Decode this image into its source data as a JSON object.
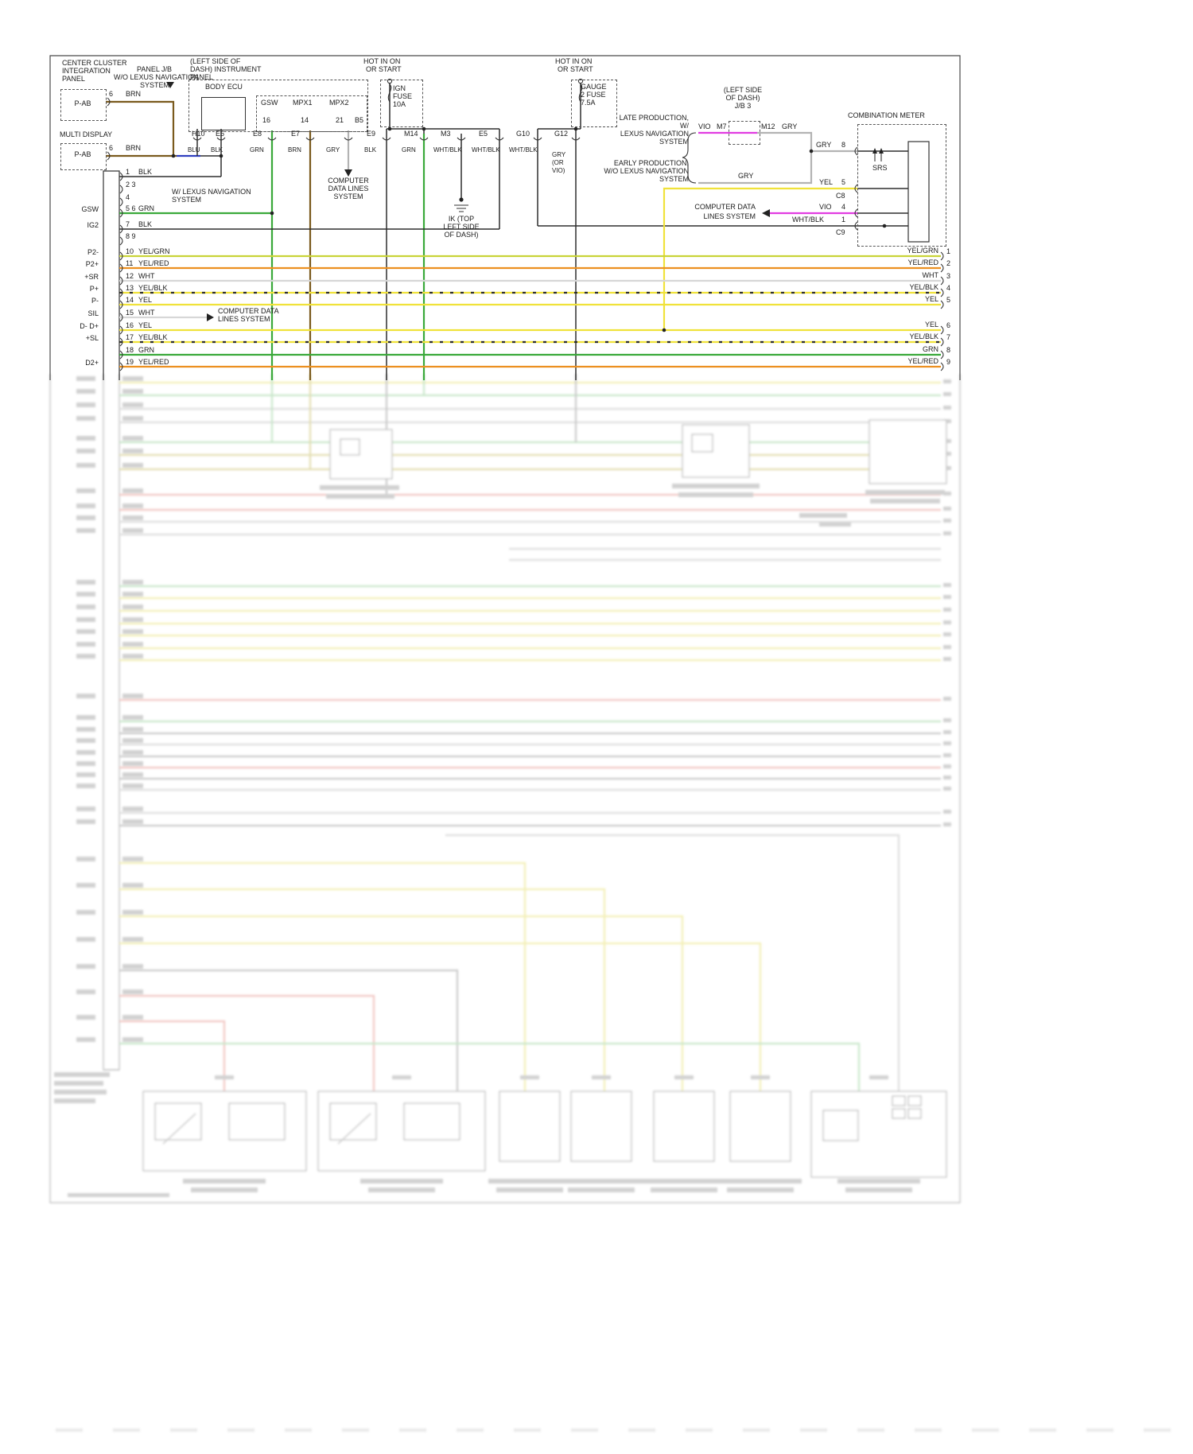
{
  "colors": {
    "blk": "#2e2e2e",
    "brn": "#7a5a1d",
    "blu": "#2f3fbf",
    "grn": "#3aa93a",
    "gry": "#b3b3b3",
    "yel": "#f0e23a",
    "yel_grn": "#c9d438",
    "yel_red": "#ec9020",
    "wht": "#d7d7d7",
    "vio": "#e13ce1",
    "frame": "#4a4a4a"
  },
  "labels": {
    "ccip1": "CENTER CLUSTER",
    "ccip2": "INTEGRATION",
    "ccip3": "PANEL",
    "panel_jb": "PANEL J/B",
    "wo_nav1": "W/O LEXUS NAVIGATION",
    "wo_nav2": "SYSTEM",
    "pab": "P-AB",
    "pin6": "6",
    "brn": "BRN",
    "multi_display": "MULTI DISPLAY",
    "w_nav1": "W/ LEXUS NAVIGATION",
    "w_nav2": "SYSTEM",
    "ip1": "(LEFT SIDE OF",
    "ip2": "DASH) INSTRUMENT",
    "ip3": "PANEL",
    "body_ecu": "BODY ECU",
    "gsw": "GSW",
    "mpx1": "MPX1",
    "mpx2": "MPX2",
    "p16": "16",
    "p14": "14",
    "p21": "21",
    "pb5": "B5",
    "hot1": "HOT IN ON",
    "hot2": "OR START",
    "ign1": "IGN",
    "ign2": "FUSE",
    "ign3": "10A",
    "gauge1": "GAUGE",
    "gauge2": "2 FUSE",
    "gauge3": "7.5A",
    "cdl1": "COMPUTER",
    "cdl2": "DATA LINES",
    "cdl3": "SYSTEM",
    "ik1": "IK (TOP",
    "ik2": "LEFT SIDE",
    "ik3": "OF DASH)",
    "cdl_l1": "COMPUTER DATA",
    "cdl_l2": "LINES SYSTEM",
    "late1": "LATE PRODUCTION,",
    "late2": "W/",
    "late3": "LEXUS NAVIGATION",
    "late4": "SYSTEM",
    "early1": "EARLY PRODUCTION,",
    "early2": "W/O LEXUS NAVIGATION",
    "early3": "SYSTEM",
    "jb3_1": "(LEFT SIDE",
    "jb3_2": "OF DASH)",
    "jb3_3": "J/B 3",
    "vio": "VIO",
    "m7": "M7",
    "m12": "M12",
    "gry": "GRY",
    "comb_meter": "COMBINATION METER",
    "srs": "SRS",
    "n8": "8",
    "n5": "5",
    "n4": "4",
    "n1": "1",
    "yel": "YEL",
    "wht_blk": "WHT/BLK",
    "c8": "C8",
    "c9": "C9"
  },
  "ecu_connectors": [
    "H10",
    "E6",
    "E8",
    "E7",
    "E9",
    "M14",
    "M3",
    "E5",
    "G10",
    "G12"
  ],
  "ecu_wire_colors": [
    "BLU",
    "BLK",
    "GRN",
    "BRN",
    "GRY",
    "BLK",
    "GRN",
    "WHT/BLK",
    "WHT/BLK",
    "WHT/BLK"
  ],
  "g12_color_lines": [
    "GRY",
    "(OR",
    "VIO)"
  ],
  "left_connector": {
    "rows": [
      {
        "pin": "1",
        "color": "BLK"
      },
      {
        "pin": "2 3",
        "color": ""
      },
      {
        "pin": "4",
        "color": ""
      },
      {
        "pin": "5 6",
        "color": "GRN"
      },
      {
        "pin": "7",
        "color": "BLK"
      },
      {
        "pin": "8 9",
        "color": ""
      },
      {
        "pin": "10",
        "color": "YEL/GRN"
      },
      {
        "pin": "11",
        "color": "YEL/RED"
      },
      {
        "pin": "12",
        "color": "WHT"
      },
      {
        "pin": "13",
        "color": "YEL/BLK"
      },
      {
        "pin": "14",
        "color": "YEL"
      },
      {
        "pin": "15",
        "color": "WHT"
      },
      {
        "pin": "16",
        "color": "YEL"
      },
      {
        "pin": "17",
        "color": "YEL/BLK"
      },
      {
        "pin": "18",
        "color": "GRN"
      },
      {
        "pin": "19",
        "color": "YEL/RED"
      }
    ]
  },
  "right_wires": {
    "rows": [
      {
        "color": "YEL/GRN",
        "num": "1"
      },
      {
        "color": "YEL/RED",
        "num": "2"
      },
      {
        "color": "WHT",
        "num": "3"
      },
      {
        "color": "YEL/BLK",
        "num": "4"
      },
      {
        "color": "YEL",
        "num": "5"
      },
      {
        "color": "YEL",
        "num": "6"
      },
      {
        "color": "YEL/BLK",
        "num": "7"
      },
      {
        "color": "GRN",
        "num": "8"
      },
      {
        "color": "YEL/RED",
        "num": "9"
      }
    ]
  },
  "signal_labels": [
    "GSW",
    "IG2",
    "P2-",
    "P2+",
    "+SR",
    "P+",
    "P-",
    "SIL",
    "D- D+",
    "+SL",
    "D2+"
  ]
}
